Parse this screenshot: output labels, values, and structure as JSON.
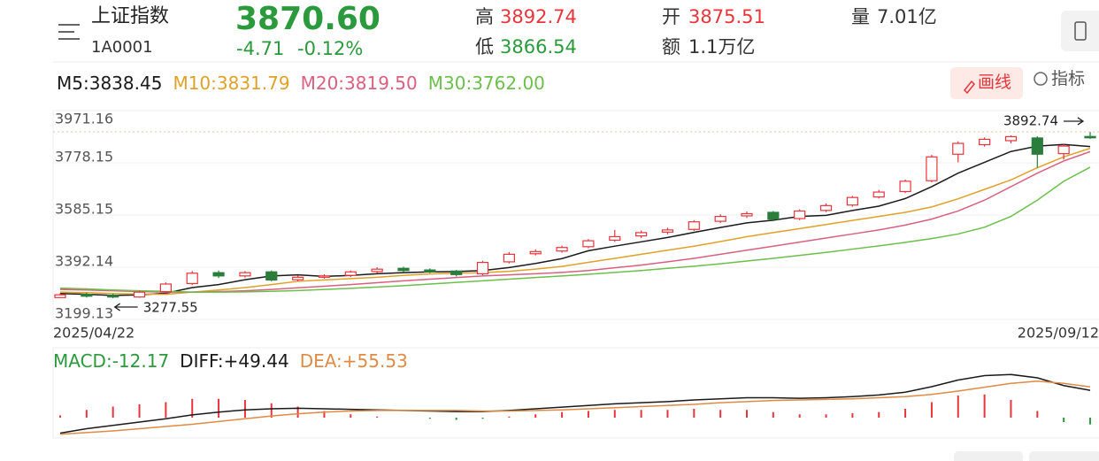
{
  "header": {
    "name": "上证指数",
    "code": "1A0001",
    "price": "3870.60",
    "change": "-4.71",
    "change_pct": "-0.12%",
    "stats": [
      {
        "label": "高",
        "value": "3892.74"
      },
      {
        "label": "低",
        "value": "3866.54"
      },
      {
        "label": "开",
        "value": "3875.51"
      },
      {
        "label": "额",
        "value": "1.1万亿"
      },
      {
        "label": "量",
        "value": "7.01亿"
      }
    ]
  },
  "toolbar": {
    "draw": "画线",
    "indicator": "指标"
  },
  "chart_data": [
    {
      "type": "candlestick",
      "categories": [
        "2025/04/22",
        null,
        null,
        null,
        null,
        null,
        null,
        null,
        null,
        null,
        null,
        null,
        null,
        null,
        null,
        null,
        null,
        null,
        null,
        null,
        null,
        null,
        null,
        null,
        null,
        null,
        null,
        null,
        null,
        null,
        null,
        null,
        null,
        null,
        null,
        null,
        null,
        null,
        null,
        "2025/09/12"
      ],
      "open": [
        3280,
        3292,
        3288,
        3282,
        3302,
        3332,
        3372,
        3360,
        3375,
        3346,
        3356,
        3362,
        3376,
        3388,
        3382,
        3378,
        3368,
        3412,
        3442,
        3452,
        3468,
        3492,
        3508,
        3522,
        3532,
        3562,
        3582,
        3595,
        3572,
        3602,
        3622,
        3652,
        3672,
        3712,
        3810,
        3845,
        3860,
        3870,
        3812,
        3875.51
      ],
      "high": [
        3296,
        3298,
        3294,
        3306,
        3336,
        3378,
        3380,
        3378,
        3380,
        3362,
        3366,
        3380,
        3392,
        3394,
        3388,
        3382,
        3416,
        3448,
        3458,
        3472,
        3496,
        3530,
        3528,
        3538,
        3566,
        3588,
        3598,
        3600,
        3606,
        3628,
        3656,
        3678,
        3716,
        3808,
        3858,
        3872,
        3880,
        3876,
        3848,
        3892.74
      ],
      "low": [
        3279,
        3280,
        3277.55,
        3279,
        3296,
        3326,
        3352,
        3354,
        3340,
        3340,
        3350,
        3356,
        3370,
        3374,
        3370,
        3358,
        3362,
        3406,
        3436,
        3446,
        3462,
        3486,
        3500,
        3514,
        3526,
        3556,
        3574,
        3562,
        3566,
        3596,
        3616,
        3646,
        3666,
        3706,
        3780,
        3838,
        3850,
        3760,
        3790,
        3866.54
      ],
      "close": [
        3290,
        3285,
        3282,
        3300,
        3330,
        3370,
        3360,
        3372,
        3345,
        3355,
        3360,
        3375,
        3385,
        3380,
        3375,
        3365,
        3410,
        3440,
        3450,
        3465,
        3490,
        3505,
        3520,
        3530,
        3560,
        3580,
        3590,
        3570,
        3600,
        3620,
        3650,
        3670,
        3710,
        3800,
        3850,
        3865,
        3875,
        3810,
        3840,
        3870.6
      ],
      "up_color": "#e8353b",
      "down_color": "#2b7d3c",
      "series": [
        {
          "name": "M5:3838.45",
          "color": "#1a1a1a",
          "values": [
            3295,
            3292,
            3288,
            3290,
            3296,
            3317,
            3328,
            3346,
            3360,
            3364,
            3358,
            3362,
            3368,
            3372,
            3375,
            3376,
            3380,
            3391,
            3406,
            3424,
            3453,
            3470,
            3486,
            3502,
            3521,
            3539,
            3556,
            3566,
            3580,
            3584,
            3602,
            3618,
            3646,
            3690,
            3740,
            3780,
            3820,
            3840,
            3846,
            3838.45
          ]
        },
        {
          "name": "M10:3831.79",
          "color": "#e0a12a",
          "values": [
            3300,
            3298,
            3295,
            3293,
            3292,
            3300,
            3308,
            3317,
            3328,
            3340,
            3345,
            3350,
            3355,
            3362,
            3367,
            3370,
            3372,
            3377,
            3385,
            3395,
            3410,
            3425,
            3440,
            3455,
            3470,
            3487,
            3505,
            3520,
            3535,
            3550,
            3565,
            3580,
            3595,
            3615,
            3645,
            3680,
            3715,
            3760,
            3800,
            3831.79
          ]
        },
        {
          "name": "M20:3819.50",
          "color": "#d9607e",
          "values": [
            3310,
            3308,
            3305,
            3302,
            3300,
            3300,
            3302,
            3305,
            3310,
            3316,
            3322,
            3328,
            3335,
            3342,
            3348,
            3354,
            3360,
            3364,
            3368,
            3373,
            3380,
            3390,
            3400,
            3412,
            3425,
            3440,
            3455,
            3470,
            3485,
            3500,
            3515,
            3530,
            3548,
            3570,
            3600,
            3640,
            3690,
            3740,
            3785,
            3819.5
          ]
        },
        {
          "name": "M30:3762.00",
          "color": "#6cbf4b",
          "values": [
            3315,
            3312,
            3308,
            3305,
            3303,
            3300,
            3300,
            3301,
            3303,
            3306,
            3310,
            3314,
            3319,
            3324,
            3330,
            3336,
            3342,
            3348,
            3354,
            3360,
            3366,
            3373,
            3380,
            3388,
            3396,
            3405,
            3415,
            3425,
            3436,
            3447,
            3459,
            3471,
            3484,
            3498,
            3515,
            3540,
            3580,
            3640,
            3710,
            3762
          ]
        }
      ],
      "ylim": [
        3199.13,
        3971.16
      ],
      "yticks": [
        3199.13,
        3392.14,
        3585.15,
        3778.15,
        3971.16
      ],
      "grid": true,
      "annotations": [
        {
          "text": "3892.74"
        },
        {
          "text": "3277.55"
        }
      ]
    },
    {
      "type": "macd",
      "ylim": [
        -40,
        120
      ],
      "histogram": {
        "name": "MACD:-12.17",
        "up_color": "#e8353b",
        "down_color": "#2b9a3c",
        "values": [
          4,
          14,
          20,
          24,
          28,
          34,
          34,
          32,
          26,
          20,
          12,
          6,
          2,
          0,
          -2,
          -4,
          -2,
          2,
          6,
          10,
          12,
          14,
          14,
          14,
          16,
          14,
          14,
          10,
          6,
          6,
          8,
          10,
          16,
          28,
          40,
          42,
          32,
          12,
          -8,
          -12.17
        ]
      },
      "series": [
        {
          "name": "DIFF:+49.44",
          "color": "#1a1a1a",
          "values": [
            -28,
            -20,
            -14,
            -8,
            -2,
            5,
            10,
            14,
            16,
            17,
            16,
            15,
            14,
            13,
            12,
            11,
            11,
            13,
            16,
            19,
            22,
            25,
            27,
            29,
            32,
            34,
            36,
            36,
            35,
            36,
            38,
            41,
            46,
            56,
            68,
            76,
            78,
            72,
            58,
            49.44
          ]
        },
        {
          "name": "DEA:+55.53",
          "color": "#e08a45",
          "values": [
            -30,
            -27,
            -24,
            -20,
            -16,
            -12,
            -7,
            -2,
            3,
            7,
            10,
            12,
            13,
            13,
            13,
            13,
            12,
            12,
            13,
            14,
            16,
            18,
            20,
            22,
            24,
            27,
            29,
            31,
            32,
            33,
            34,
            36,
            38,
            42,
            48,
            55,
            62,
            66,
            62,
            55.53
          ]
        }
      ]
    }
  ]
}
